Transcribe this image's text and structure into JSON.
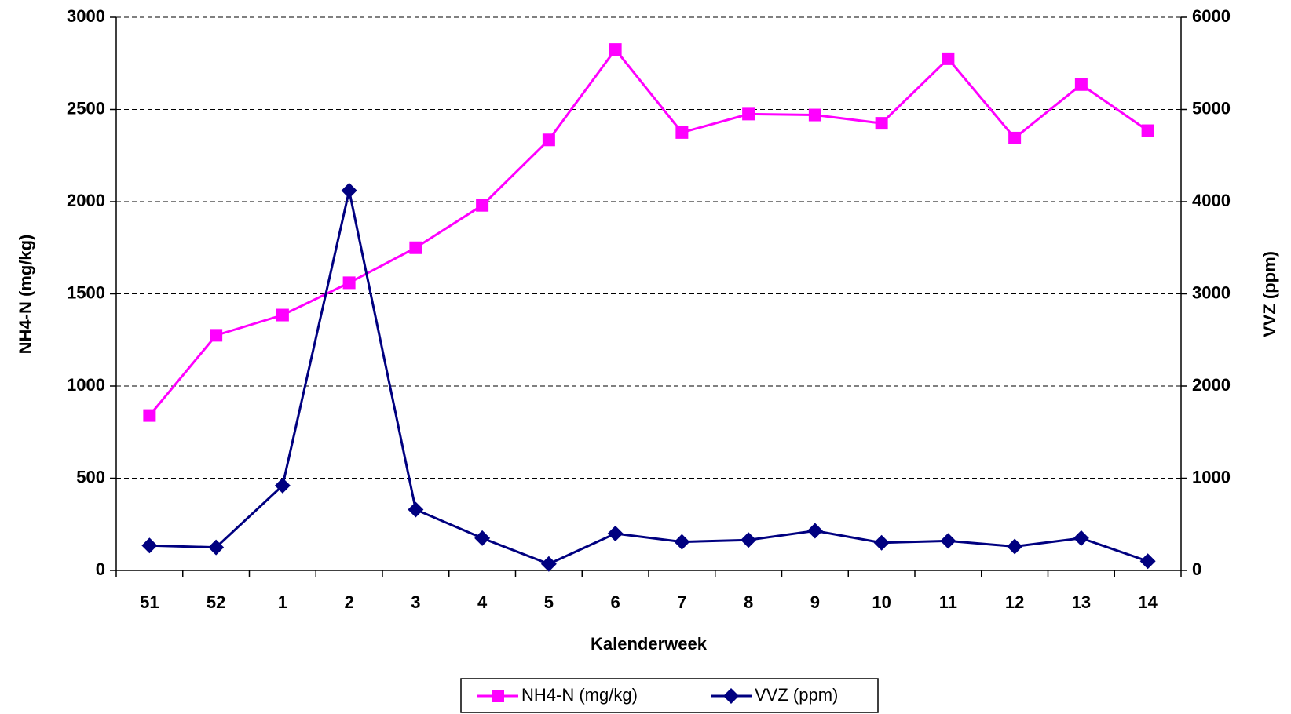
{
  "chart_data": {
    "type": "line",
    "xlabel": "Kalenderweek",
    "ylabel": "NH4-N (mg/kg)",
    "y2label": "VVZ (ppm)",
    "categories": [
      "51",
      "52",
      "1",
      "2",
      "3",
      "4",
      "5",
      "6",
      "7",
      "8",
      "9",
      "10",
      "11",
      "12",
      "13",
      "14"
    ],
    "series": [
      {
        "name": "NH4-N (mg/kg)",
        "color": "#ff00ff",
        "marker": "square",
        "values": [
          840,
          1275,
          1385,
          1560,
          1750,
          1980,
          2335,
          2825,
          2375,
          2475,
          2470,
          2425,
          2775,
          2345,
          2635,
          2385
        ]
      },
      {
        "name": "VVZ (ppm)",
        "color": "#000080",
        "marker": "diamond",
        "axis": "y2",
        "values": [
          270,
          250,
          920,
          4120,
          660,
          350,
          70,
          400,
          310,
          330,
          430,
          300,
          320,
          260,
          350,
          100
        ]
      }
    ],
    "ylim": [
      0,
      3000
    ],
    "yticks": [
      0,
      500,
      1000,
      1500,
      2000,
      2500,
      3000
    ],
    "y2lim": [
      0,
      6000
    ],
    "y2ticks": [
      0,
      1000,
      2000,
      3000,
      4000,
      5000,
      6000
    ],
    "grid": true,
    "legend": "bottom"
  }
}
